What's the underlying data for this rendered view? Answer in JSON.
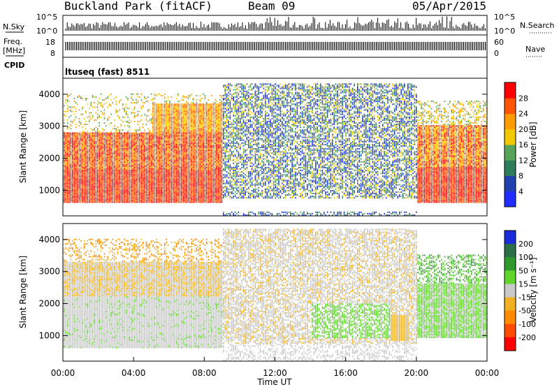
{
  "header": {
    "station": "Buckland Park (fitACF)",
    "beam": "Beam 09",
    "date": "05/Apr/2015"
  },
  "top_panel": {
    "left_label_1": "N.Sky",
    "left_label_2": "Freq.",
    "left_label_3": "[MHz]",
    "left_label_4": "CPID",
    "right_label_1": "N.Search",
    "right_label_2": "Nave",
    "left_ticks_1": [
      "10^5",
      "10^0"
    ],
    "left_ticks_2": [
      "18",
      "8"
    ],
    "right_ticks_1": [
      "10^5",
      "10^0"
    ],
    "right_ticks_2": [
      "60",
      "0"
    ],
    "cpid_text": "ltuseq (fast) 8511"
  },
  "chart_data": [
    {
      "type": "heatmap",
      "name": "power",
      "ylabel": "Slant Range [km]",
      "ylim": [
        200,
        4500
      ],
      "yticks": [
        "1000",
        "2000",
        "3000",
        "4000"
      ],
      "colorbar_label": "Power [dB]",
      "colorbar_ticks": [
        "4",
        "8",
        "12",
        "16",
        "20",
        "24",
        "28"
      ],
      "colors": [
        "#1f2bff",
        "#2140b0",
        "#2e7d5a",
        "#57a35a",
        "#f2c800",
        "#ff9a00",
        "#ff5500",
        "#ff0000"
      ]
    },
    {
      "type": "heatmap",
      "name": "velocity",
      "ylabel": "Slant Range [km]",
      "ylim": [
        200,
        4500
      ],
      "yticks": [
        "1000",
        "2000",
        "3000",
        "4000"
      ],
      "xticks": [
        "00:00",
        "04:00",
        "08:00",
        "12:00",
        "16:00",
        "20:00",
        "00:00"
      ],
      "xlabel": "Time UT",
      "colorbar_label": "Velocity [m s⁻¹]",
      "colorbar_ticks": [
        "200",
        "100",
        "50",
        "15",
        "-15",
        "-50",
        "-100",
        "-200"
      ],
      "colors": [
        "#1a2bd9",
        "#2c6e48",
        "#2e9a2e",
        "#5fd42a",
        "#c8c8c8",
        "#f0b020",
        "#ff8a00",
        "#ff4a00",
        "#ff0000"
      ]
    }
  ]
}
